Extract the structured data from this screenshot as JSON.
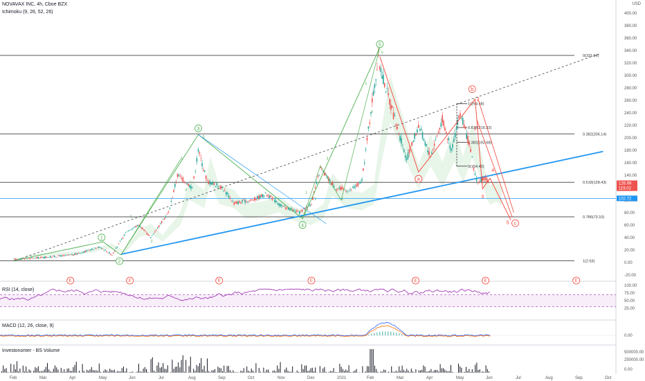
{
  "header": {
    "symbol": "NOVAVAX INC, 4h, Cboe BZX",
    "indicator": "Ichimoku (9, 26, 52, 26)",
    "currency": "USD"
  },
  "panes": {
    "rsi_label": "RSI (14, close)",
    "macd_label": "MACD (12, 26, close, 9)",
    "volume_label": "Investonomer - BS Volume"
  },
  "colors": {
    "fib_line": "#555555",
    "trend_blue": "#2196f3",
    "wave_green": "#4caf50",
    "wave_red": "#f44336",
    "rsi": "#9c27b0",
    "macd": "#2962ff",
    "signal": "#ff6d00",
    "candle_up": "#26a69a",
    "candle_down": "#ef5350"
  },
  "chart_data": {
    "type": "candlestick",
    "x_labels": [
      "Feb",
      "Mar",
      "Apr",
      "May",
      "Jun",
      "Jul",
      "Aug",
      "Sep",
      "Oct",
      "Nov",
      "Dec",
      "2021",
      "Feb",
      "Mar",
      "Apr",
      "May",
      "Jun",
      "Jul",
      "Aug",
      "Sep",
      "Oct"
    ],
    "price_axis": {
      "ticks": [
        400,
        380,
        360,
        340,
        320,
        300,
        280,
        260,
        240,
        220,
        200,
        180,
        160,
        140,
        120,
        100,
        80,
        60,
        40,
        20,
        0,
        -20
      ],
      "ylim": [
        -28,
        412
      ],
      "last_price_labels": [
        "126.99",
        "119.02",
        "102.72"
      ]
    },
    "price_path": [
      {
        "x": 0,
        "y": 5
      },
      {
        "x": 1,
        "y": 8
      },
      {
        "x": 2,
        "y": 12
      },
      {
        "x": 2.9,
        "y": 25
      },
      {
        "x": 3.3,
        "y": 12
      },
      {
        "x": 3.8,
        "y": 50
      },
      {
        "x": 4.2,
        "y": 60
      },
      {
        "x": 4.6,
        "y": 40
      },
      {
        "x": 5.2,
        "y": 80
      },
      {
        "x": 5.5,
        "y": 140
      },
      {
        "x": 6.0,
        "y": 120
      },
      {
        "x": 6.2,
        "y": 180
      },
      {
        "x": 6.5,
        "y": 130
      },
      {
        "x": 7.0,
        "y": 120
      },
      {
        "x": 7.4,
        "y": 95
      },
      {
        "x": 8.0,
        "y": 100
      },
      {
        "x": 8.5,
        "y": 110
      },
      {
        "x": 9.0,
        "y": 90
      },
      {
        "x": 9.6,
        "y": 80
      },
      {
        "x": 10.0,
        "y": 95
      },
      {
        "x": 10.3,
        "y": 150
      },
      {
        "x": 10.8,
        "y": 120
      },
      {
        "x": 11.3,
        "y": 115
      },
      {
        "x": 11.7,
        "y": 130
      },
      {
        "x": 12.0,
        "y": 245
      },
      {
        "x": 12.25,
        "y": 325
      },
      {
        "x": 12.5,
        "y": 280
      },
      {
        "x": 12.8,
        "y": 230
      },
      {
        "x": 13.2,
        "y": 165
      },
      {
        "x": 13.6,
        "y": 220
      },
      {
        "x": 14.0,
        "y": 170
      },
      {
        "x": 14.4,
        "y": 230
      },
      {
        "x": 14.7,
        "y": 180
      },
      {
        "x": 15.0,
        "y": 240
      },
      {
        "x": 15.3,
        "y": 190
      },
      {
        "x": 15.5,
        "y": 140
      },
      {
        "x": 15.6,
        "y": 128
      },
      {
        "x": 15.8,
        "y": 135
      },
      {
        "x": 16.0,
        "y": 127
      }
    ],
    "fib_levels": [
      {
        "label": "0(331.94)",
        "value": 331.94
      },
      {
        "label": "0.382(206.14)",
        "value": 206.14
      },
      {
        "label": "0.618(128.43)",
        "value": 128.43
      },
      {
        "label": "0.786(73.10)",
        "value": 73.1
      },
      {
        "label": "1(2.63)",
        "value": 2.63
      }
    ],
    "fib_small_levels": [
      {
        "label": "1(254.58)",
        "value": 254.58
      },
      {
        "label": "0.618(216.32)",
        "value": 216.32
      },
      {
        "label": "0.382(192.68)",
        "value": 192.68
      },
      {
        "label": "0(154.42)",
        "value": 154.42
      }
    ],
    "blue_hline": 102.72,
    "trendline_blue": [
      {
        "x": 3.6,
        "y": 13
      },
      {
        "x": 19.8,
        "y": 178
      }
    ],
    "trendline_dashed": [
      {
        "x": 0,
        "y": 2
      },
      {
        "x": 19.7,
        "y": 335
      }
    ],
    "green_wave": [
      {
        "x": 0,
        "y": 3
      },
      {
        "x": 3.0,
        "y": 33
      },
      {
        "x": 3.6,
        "y": 12
      },
      {
        "x": 6.2,
        "y": 205
      },
      {
        "x": 9.7,
        "y": 70
      },
      {
        "x": 12.3,
        "y": 345
      }
    ],
    "green_wave_labels": [
      {
        "text": "1",
        "x": 2.95,
        "y": 40
      },
      {
        "text": "2",
        "x": 3.55,
        "y": 2
      },
      {
        "text": "3",
        "x": 6.2,
        "y": 215
      },
      {
        "text": "4",
        "x": 9.7,
        "y": 60
      },
      {
        "text": "5",
        "x": 12.3,
        "y": 350
      }
    ],
    "green_subwave_labels": [
      {
        "text": "1",
        "x": 3.9,
        "y": 72
      },
      {
        "text": "2",
        "x": 4.6,
        "y": 32
      },
      {
        "text": "3",
        "x": 5.6,
        "y": 165
      },
      {
        "text": "4",
        "x": 5.75,
        "y": 115
      },
      {
        "text": "5",
        "x": 6.35,
        "y": 200
      },
      {
        "text": "1",
        "x": 9.8,
        "y": 110
      },
      {
        "text": "2",
        "x": 10.1,
        "y": 100
      },
      {
        "text": "3",
        "x": 10.5,
        "y": 165
      },
      {
        "text": "2",
        "x": 11.0,
        "y": 100
      },
      {
        "text": "3",
        "x": 11.8,
        "y": 285
      },
      {
        "text": "4",
        "x": 12.0,
        "y": 240
      },
      {
        "text": "5",
        "x": 12.35,
        "y": 335
      }
    ],
    "red_wave": [
      {
        "x": 12.3,
        "y": 330
      },
      {
        "x": 13.6,
        "y": 145
      },
      {
        "x": 15.5,
        "y": 262
      },
      {
        "x": 15.75,
        "y": 118
      },
      {
        "x": 16.0,
        "y": 135
      },
      {
        "x": 16.7,
        "y": 68
      }
    ],
    "red_wave_labels": [
      {
        "text": "a",
        "x": 13.6,
        "y": 134
      },
      {
        "text": "b",
        "x": 15.4,
        "y": 278
      },
      {
        "text": "2",
        "x": 15.6,
        "y": 262
      },
      {
        "text": "1",
        "x": 15.5,
        "y": 215
      },
      {
        "text": "3",
        "x": 15.75,
        "y": 106
      },
      {
        "text": "4",
        "x": 16.1,
        "y": 148
      },
      {
        "text": "5",
        "x": 16.6,
        "y": 64
      },
      {
        "text": "c",
        "x": 16.85,
        "y": 63
      }
    ],
    "red_channel": [
      [
        {
          "x": 15.6,
          "y": 262
        },
        {
          "x": 16.8,
          "y": 80
        }
      ],
      [
        {
          "x": 15.55,
          "y": 230
        },
        {
          "x": 16.75,
          "y": 72
        }
      ]
    ],
    "earnings_markers_x": [
      1.9,
      3.9,
      6.9,
      10.0,
      13.5,
      15.85,
      18.9
    ],
    "rsi": {
      "ticks": [
        "100.00",
        "75.00",
        "50.00",
        "25.00"
      ],
      "band": [
        30,
        70
      ]
    },
    "macd": {
      "ticks": [
        "0.00"
      ]
    },
    "volume": {
      "ticks": [
        "500000.00",
        "250000.00",
        "0.00"
      ]
    }
  }
}
